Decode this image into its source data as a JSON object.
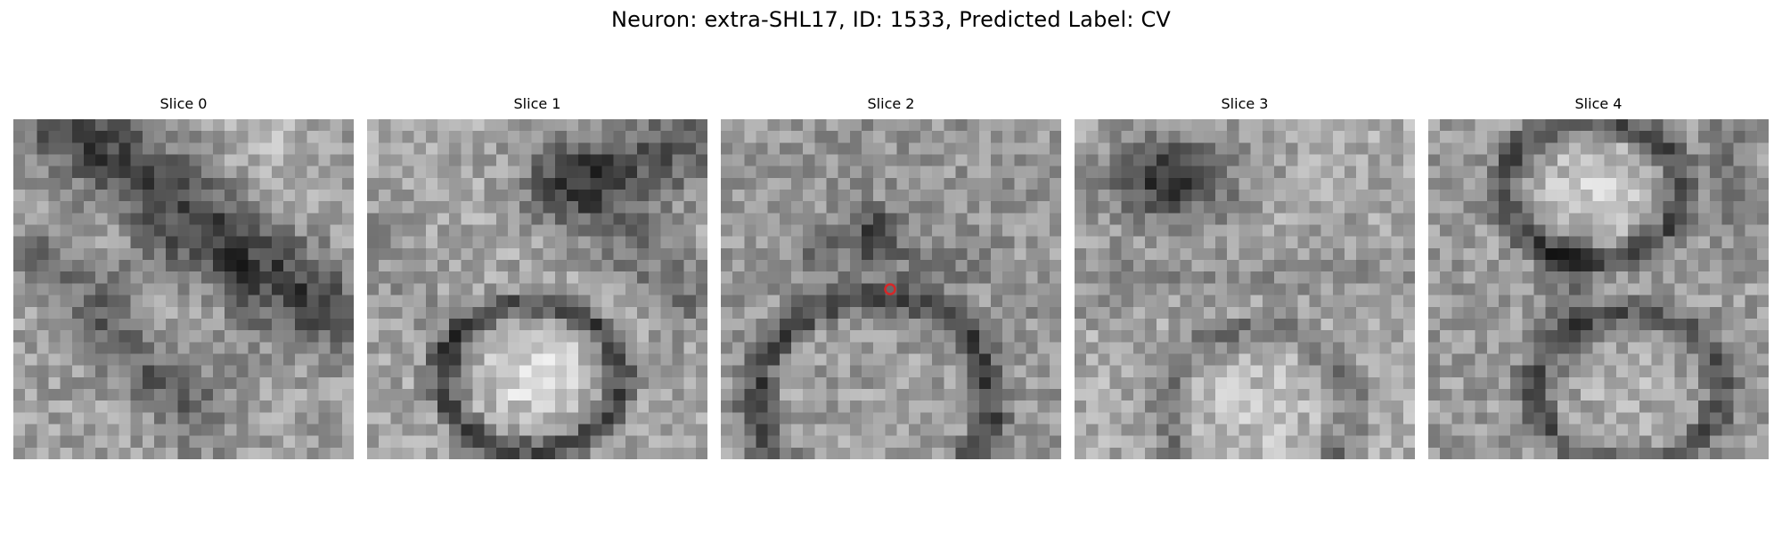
{
  "figure": {
    "title": "Neuron: extra-SHL17, ID: 1533, Predicted Label: CV"
  },
  "panels": [
    {
      "title": "Slice 0",
      "pattern": "diagonal-dark-band"
    },
    {
      "title": "Slice 1",
      "pattern": "bright-cell-lower-center"
    },
    {
      "title": "Slice 2",
      "pattern": "dark-ring-with-red-marker"
    },
    {
      "title": "Slice 3",
      "pattern": "dark-blob-top-bright-cell-bottom"
    },
    {
      "title": "Slice 4",
      "pattern": "two-cells-stacked"
    }
  ],
  "marker": {
    "color": "#d62728",
    "shape": "circle-marker-icon"
  },
  "colors": {
    "colormap": "gray",
    "background": "#ffffff"
  }
}
